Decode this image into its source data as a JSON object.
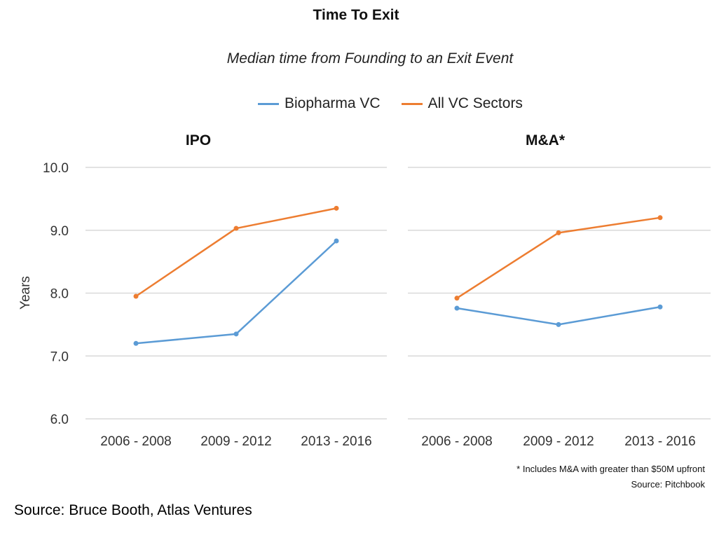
{
  "title": "Time To Exit",
  "subtitle": "Median time from Founding to an Exit Event",
  "legend": [
    {
      "name": "Biopharma VC",
      "color": "#5b9bd5"
    },
    {
      "name": "All VC Sectors",
      "color": "#ed7d31"
    }
  ],
  "ylabel": "Years",
  "footnote": "* Includes M&A with greater than $50M upfront",
  "footnote_source": "Source: Pitchbook",
  "source": "Source: Bruce Booth, Atlas Ventures",
  "chart_data": [
    {
      "type": "line",
      "title": "IPO",
      "categories": [
        "2006 - 2008",
        "2009 - 2012",
        "2013 - 2016"
      ],
      "ylabel": "Years",
      "ylim": [
        6.0,
        10.0
      ],
      "yticks": [
        "6.0",
        "7.0",
        "8.0",
        "9.0",
        "10.0"
      ],
      "grid": true,
      "series": [
        {
          "name": "Biopharma VC",
          "color": "#5b9bd5",
          "values": [
            7.2,
            7.35,
            8.83
          ]
        },
        {
          "name": "All VC Sectors",
          "color": "#ed7d31",
          "values": [
            7.95,
            9.03,
            9.35
          ]
        }
      ]
    },
    {
      "type": "line",
      "title": "M&A*",
      "categories": [
        "2006 - 2008",
        "2009 - 2012",
        "2013 - 2016"
      ],
      "ylim": [
        6.0,
        10.0
      ],
      "grid": true,
      "series": [
        {
          "name": "Biopharma VC",
          "color": "#5b9bd5",
          "values": [
            7.76,
            7.5,
            7.78
          ]
        },
        {
          "name": "All VC Sectors",
          "color": "#ed7d31",
          "values": [
            7.92,
            8.96,
            9.2
          ]
        }
      ]
    }
  ]
}
